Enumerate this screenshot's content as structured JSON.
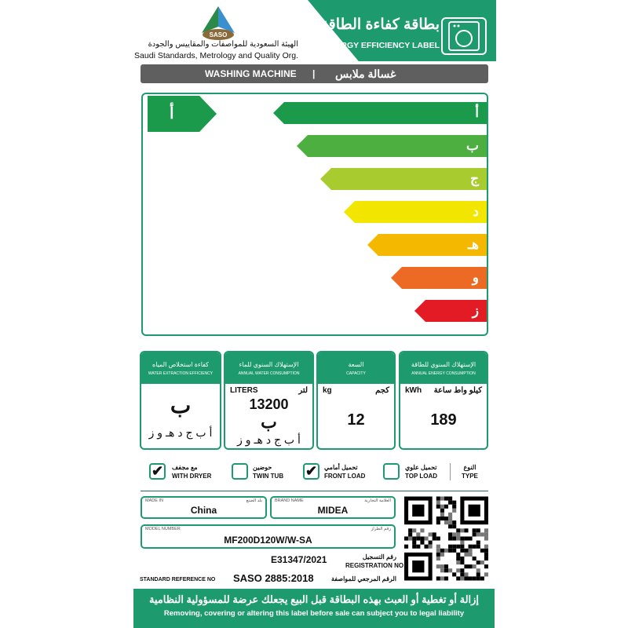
{
  "header": {
    "title_ar": "بطاقة كفاءة الطاقة",
    "title_en": "ENERGY EFFICIENCY LABEL",
    "icon": "washing-machine-icon",
    "logo_text": "SASO",
    "org_ar": "الهيئة السعودية للمواصفات والمقاييس والجودة",
    "org_en": "Saudi Standards, Metrology and Quality Org."
  },
  "product_bar": {
    "en": "WASHING MACHINE",
    "sep": "|",
    "ar": "غسالة ملابس"
  },
  "rating": {
    "classes": [
      {
        "label": "أ",
        "color": "#1a9a4a"
      },
      {
        "label": "ب",
        "color": "#4caf3f"
      },
      {
        "label": "ج",
        "color": "#a8cc30"
      },
      {
        "label": "د",
        "color": "#f2e600"
      },
      {
        "label": "هـ",
        "color": "#f5b800"
      },
      {
        "label": "و",
        "color": "#ec6a24"
      },
      {
        "label": "ز",
        "color": "#e21b24"
      }
    ],
    "current": "أ"
  },
  "boxes": {
    "water_extraction": {
      "ar": "كفاءة استخلاص المياه",
      "en": "WATER EXTRACTION EFFICIENCY",
      "class": "ب",
      "scale": "أ ب ج د هـ و ز",
      "icon": "shirt-drip-icon"
    },
    "water": {
      "ar": "الإستهلاك السنوي للماء",
      "en": "ANNUAL WATER CONSUMPTION",
      "unit_en": "LITERS",
      "unit_ar": "لتر",
      "value": "13200",
      "class": "ب",
      "scale": "أ ب ج د هـ و ز",
      "icon": "faucet-icon"
    },
    "capacity": {
      "ar": "السعة",
      "en": "CAPACITY",
      "unit_en": "kg",
      "unit_ar": "كجم",
      "value": "12",
      "icon": "shirt-kg-icon"
    },
    "energy": {
      "ar": "الإستهلاك السنوي للطاقة",
      "en": "ANNUAL ENERGY CONSUMPTION",
      "unit_en": "kWh",
      "unit_ar": "كيلو واط ساعة",
      "value": "189",
      "icon": "lightning-icon"
    }
  },
  "type": {
    "label_ar": "النوع",
    "label_en": "TYPE",
    "options": [
      {
        "ar": "مع مجفف",
        "en": "WITH DRYER",
        "checked": true
      },
      {
        "ar": "حوضين",
        "en": "TWIN TUB",
        "checked": false
      },
      {
        "ar": "تحميل أمامي",
        "en": "FRONT LOAD",
        "checked": true
      },
      {
        "ar": "تحميل علوي",
        "en": "TOP LOAD",
        "checked": false
      }
    ]
  },
  "details": {
    "made_in_en": "MADE IN",
    "made_in_ar": "بلد الصنع",
    "made_in": "China",
    "brand_en": "BRAND NAME",
    "brand_ar": "العلامة التجارية",
    "brand": "MIDEA",
    "model_en": "MODEL NUMBER",
    "model_ar": "رقم الطراز",
    "model": "MF200D120W/W-SA",
    "reg_ar": "رقم التسجيل",
    "reg_en": "REGISTRATION NO",
    "reg": "E31347/2021",
    "std_en": "STANDARD REFERENCE NO",
    "std": "SASO 2885:2018",
    "std_ar": "الرقم المرجعي للمواصفة"
  },
  "footer": {
    "ar": "إزالة أو تغطية أو العبث بهذه البطاقة قبل البيع يجعلك عرضة للمسؤولية النظامية",
    "en": "Removing, covering or altering this label before sale can subject you to legal liability"
  }
}
